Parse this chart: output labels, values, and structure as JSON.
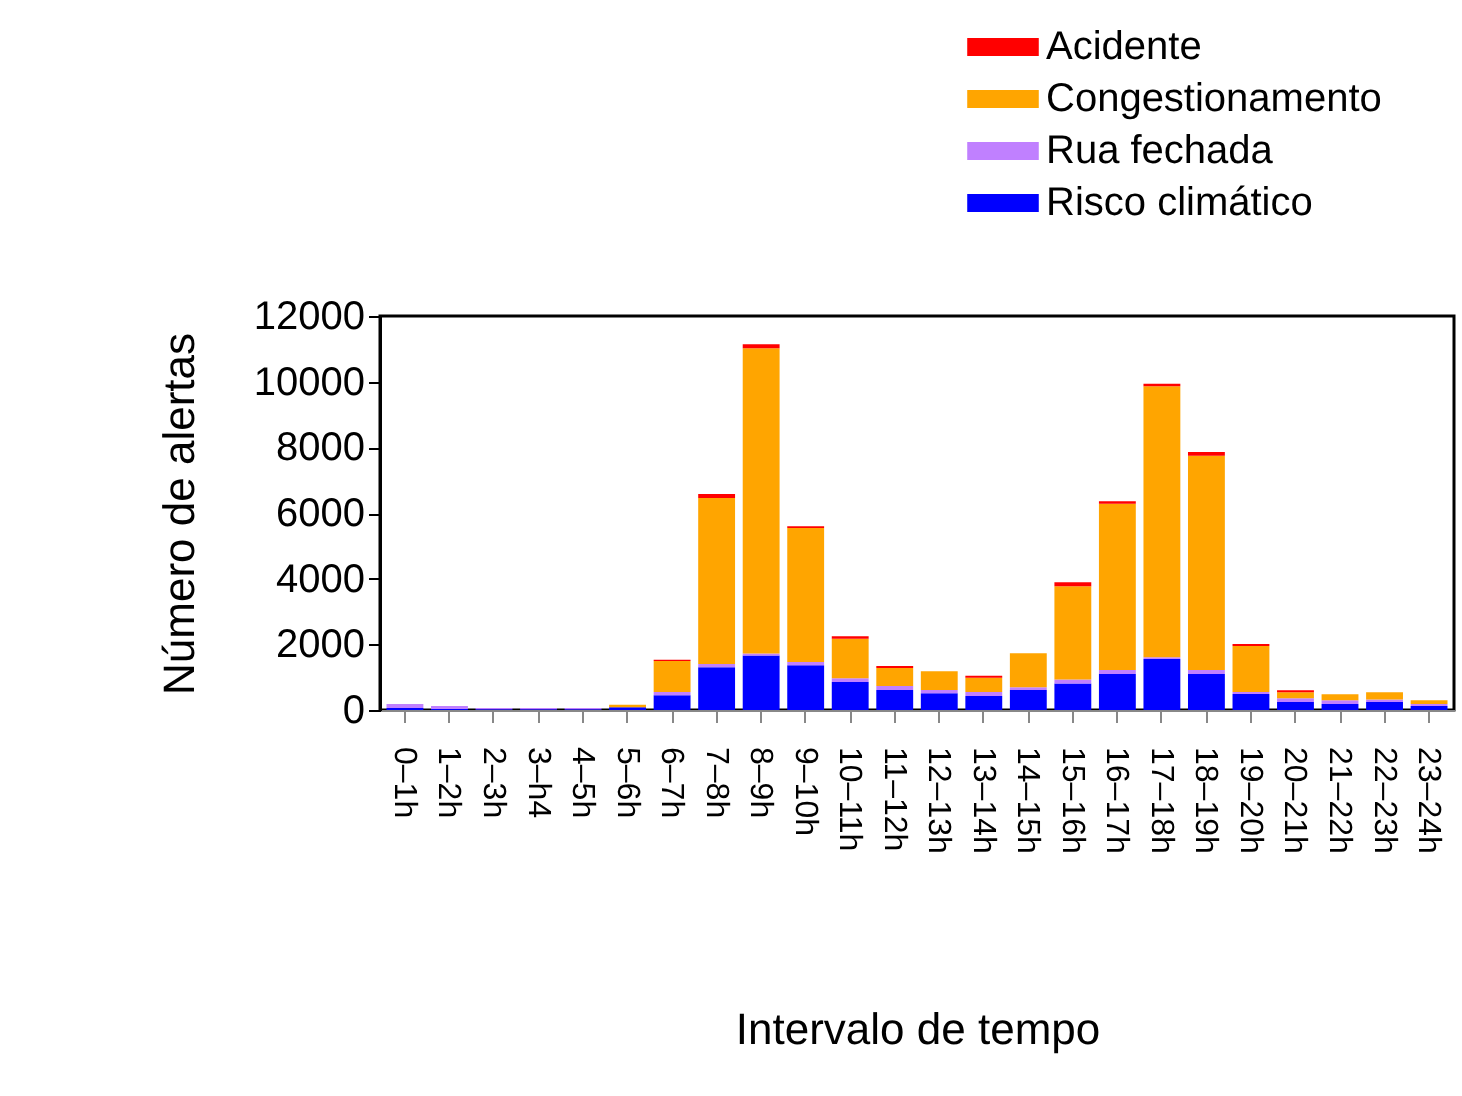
{
  "chart_data": {
    "type": "bar",
    "stacked": true,
    "xlabel": "Intervalo de tempo",
    "ylabel": "Número de alertas",
    "categories": [
      "0–1h",
      "1–2h",
      "2–3h",
      "3–h4",
      "4–5h",
      "5–6h",
      "6–7h",
      "7–8h",
      "8–9h",
      "9–10h",
      "10–11h",
      "11–12h",
      "12–13h",
      "13–14h",
      "14–15h",
      "15–16h",
      "16–17h",
      "17–18h",
      "18–19h",
      "19–20h",
      "20–21h",
      "21–22h",
      "22–23h",
      "23–24h"
    ],
    "series": [
      {
        "name": "Risco climático",
        "color": "#0000ff",
        "values": [
          60,
          30,
          20,
          20,
          20,
          80,
          450,
          1300,
          1660,
          1360,
          850,
          610,
          510,
          430,
          610,
          810,
          1100,
          1550,
          1100,
          490,
          240,
          180,
          240,
          120
        ]
      },
      {
        "name": "Rua fechada",
        "color": "#c080ff",
        "values": [
          120,
          90,
          40,
          40,
          40,
          null,
          100,
          100,
          60,
          100,
          120,
          120,
          100,
          120,
          80,
          120,
          120,
          60,
          120,
          60,
          120,
          120,
          80,
          60
        ]
      },
      {
        "name": "Congestionamento",
        "color": "#ffa500",
        "values": [
          0,
          0,
          0,
          0,
          0,
          80,
          940,
          5060,
          9300,
          4080,
          1200,
          550,
          570,
          430,
          1040,
          2840,
          5060,
          8250,
          6520,
          1400,
          180,
          180,
          220,
          120
        ]
      },
      {
        "name": "Acidente",
        "color": "#ff0000",
        "values": [
          0,
          0,
          0,
          0,
          0,
          0,
          40,
          120,
          120,
          60,
          80,
          60,
          0,
          60,
          0,
          120,
          80,
          80,
          120,
          60,
          60,
          0,
          0,
          0
        ]
      }
    ],
    "ylim": [
      0,
      12000
    ],
    "yticks": [
      0,
      2000,
      4000,
      6000,
      8000,
      10000,
      12000
    ],
    "grid": false,
    "legend": "top right"
  }
}
